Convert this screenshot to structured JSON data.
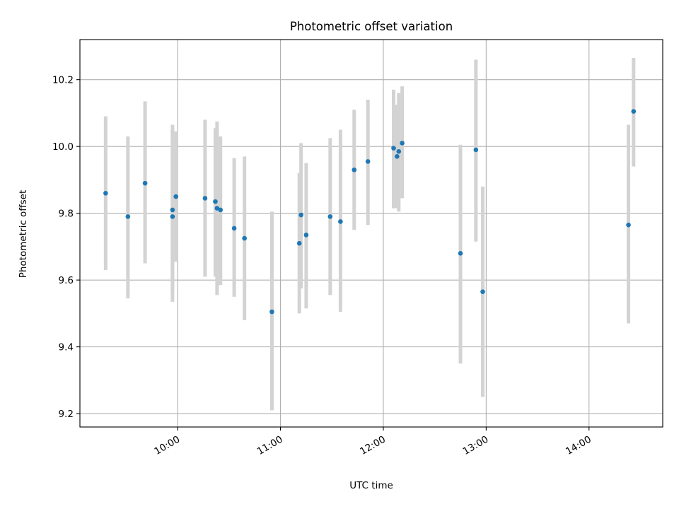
{
  "chart_data": {
    "type": "scatter",
    "title": "Photometric offset variation",
    "xlabel": "UTC time",
    "ylabel": "Photometric offset",
    "xlim": [
      "09:03",
      "14:43"
    ],
    "ylim": [
      9.16,
      10.32
    ],
    "xticks": [
      "10:00",
      "11:00",
      "12:00",
      "13:00",
      "14:00"
    ],
    "yticks": [
      9.2,
      9.4,
      9.6,
      9.8,
      10.0,
      10.2
    ],
    "grid": true,
    "colors": {
      "point": "#1f77b4",
      "errorbar": "#d3d3d3",
      "grid": "#b0b0b0"
    },
    "points": [
      {
        "x": "09:18",
        "y": 9.86,
        "lo": 9.63,
        "hi": 10.09
      },
      {
        "x": "09:31",
        "y": 9.79,
        "lo": 9.545,
        "hi": 10.03
      },
      {
        "x": "09:41",
        "y": 9.89,
        "lo": 9.65,
        "hi": 10.135
      },
      {
        "x": "09:57",
        "y": 9.79,
        "lo": 9.535,
        "hi": 10.065
      },
      {
        "x": "09:57",
        "y": 9.81,
        "lo": 9.57,
        "hi": 10.05
      },
      {
        "x": "09:59",
        "y": 9.85,
        "lo": 9.655,
        "hi": 10.045
      },
      {
        "x": "10:16",
        "y": 9.845,
        "lo": 9.61,
        "hi": 10.08
      },
      {
        "x": "10:22",
        "y": 9.835,
        "lo": 9.61,
        "hi": 10.055
      },
      {
        "x": "10:23",
        "y": 9.815,
        "lo": 9.555,
        "hi": 10.075
      },
      {
        "x": "10:25",
        "y": 9.81,
        "lo": 9.585,
        "hi": 10.03
      },
      {
        "x": "10:33",
        "y": 9.755,
        "lo": 9.55,
        "hi": 9.965
      },
      {
        "x": "10:39",
        "y": 9.725,
        "lo": 9.48,
        "hi": 9.97
      },
      {
        "x": "10:55",
        "y": 9.505,
        "lo": 9.21,
        "hi": 9.805
      },
      {
        "x": "11:11",
        "y": 9.71,
        "lo": 9.5,
        "hi": 9.92
      },
      {
        "x": "11:12",
        "y": 9.795,
        "lo": 9.575,
        "hi": 10.01
      },
      {
        "x": "11:15",
        "y": 9.735,
        "lo": 9.515,
        "hi": 9.95
      },
      {
        "x": "11:29",
        "y": 9.79,
        "lo": 9.555,
        "hi": 10.025
      },
      {
        "x": "11:35",
        "y": 9.775,
        "lo": 9.505,
        "hi": 10.05
      },
      {
        "x": "11:43",
        "y": 9.93,
        "lo": 9.75,
        "hi": 10.11
      },
      {
        "x": "11:51",
        "y": 9.955,
        "lo": 9.765,
        "hi": 10.14
      },
      {
        "x": "12:06",
        "y": 9.995,
        "lo": 9.815,
        "hi": 10.17
      },
      {
        "x": "12:08",
        "y": 9.97,
        "lo": 9.815,
        "hi": 10.125
      },
      {
        "x": "12:09",
        "y": 9.985,
        "lo": 9.805,
        "hi": 10.16
      },
      {
        "x": "12:11",
        "y": 10.01,
        "lo": 9.845,
        "hi": 10.18
      },
      {
        "x": "12:45",
        "y": 9.68,
        "lo": 9.35,
        "hi": 10.005
      },
      {
        "x": "12:54",
        "y": 9.99,
        "lo": 9.715,
        "hi": 10.26
      },
      {
        "x": "12:58",
        "y": 9.565,
        "lo": 9.25,
        "hi": 9.88
      },
      {
        "x": "14:23",
        "y": 9.765,
        "lo": 9.47,
        "hi": 10.065
      },
      {
        "x": "14:26",
        "y": 10.105,
        "lo": 9.94,
        "hi": 10.265
      }
    ]
  }
}
